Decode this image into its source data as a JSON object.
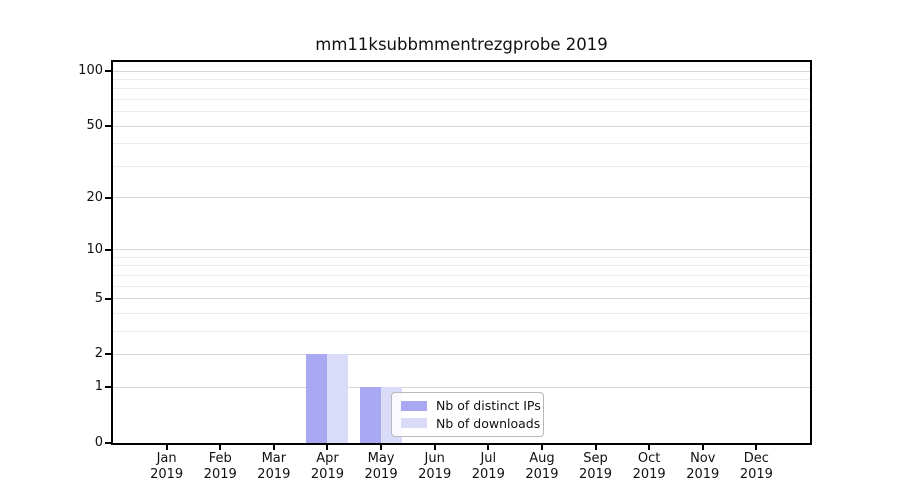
{
  "chart_data": {
    "type": "bar",
    "title": "mm11ksubbmmentrezgprobe 2019",
    "categories": [
      "Jan",
      "Feb",
      "Mar",
      "Apr",
      "May",
      "Jun",
      "Jul",
      "Aug",
      "Sep",
      "Oct",
      "Nov",
      "Dec"
    ],
    "x_tick_year": "2019",
    "series": [
      {
        "name": "Nb of distinct IPs",
        "color": "#a9a9f3",
        "values": [
          0,
          0,
          0,
          2,
          1,
          0,
          0,
          0,
          0,
          0,
          0,
          0
        ]
      },
      {
        "name": "Nb of downloads",
        "color": "#dadaf9",
        "values": [
          0,
          0,
          0,
          2,
          1,
          0,
          0,
          0,
          0,
          0,
          0,
          0
        ]
      }
    ],
    "yscale": "log1p",
    "ylim": [
      0,
      112
    ],
    "y_tick_values": [
      0,
      1,
      2,
      5,
      10,
      20,
      50,
      100
    ],
    "y_tick_labels": [
      "0",
      "1",
      "2",
      "5",
      "10",
      "20",
      "50",
      "100"
    ],
    "y_minor_gridlines": [
      3,
      4,
      6,
      7,
      8,
      9,
      30,
      40,
      60,
      70,
      80,
      90
    ],
    "grid": "horizontal-only",
    "legend_position": "inside-lower-center",
    "colors": {
      "grid_major": "#d6d6d6",
      "grid_minor": "#ececec",
      "axis": "#000000",
      "text": "#111111",
      "background": "#ffffff"
    }
  }
}
